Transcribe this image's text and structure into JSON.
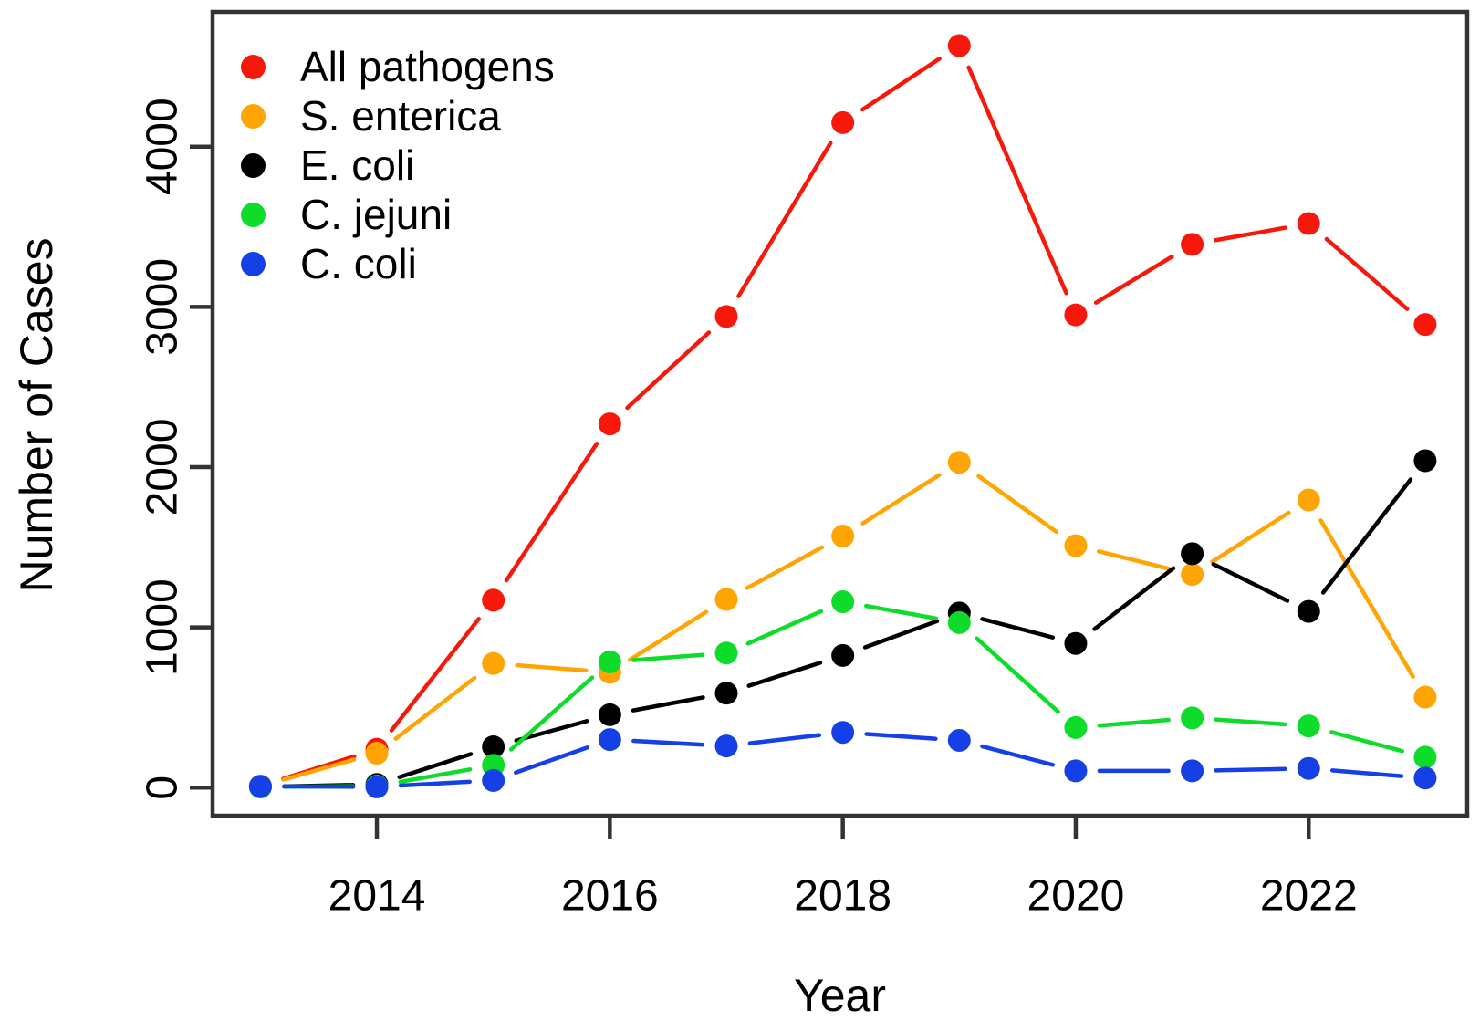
{
  "figure": {
    "background_color": "#ffffff",
    "frame_color": "#333333",
    "text_color": "#000000"
  },
  "chart_data": {
    "type": "line",
    "title": "",
    "xlabel": "Year",
    "ylabel": "Number of Cases",
    "marker": "filled-circle",
    "line_style": "segments-with-gaps-around-points",
    "grid": false,
    "legend_position": "top-left-inside",
    "x": [
      2013,
      2014,
      2015,
      2016,
      2017,
      2018,
      2019,
      2020,
      2021,
      2022,
      2023
    ],
    "x_ticks": [
      2014,
      2016,
      2018,
      2020,
      2022
    ],
    "x_tick_labels": [
      "2014",
      "2016",
      "2018",
      "2020",
      "2022"
    ],
    "y_ticks": [
      0,
      1000,
      2000,
      3000,
      4000
    ],
    "y_tick_labels": [
      "0",
      "1000",
      "2000",
      "3000",
      "4000"
    ],
    "xlim": [
      2012.6,
      2023.4
    ],
    "ylim": [
      -175,
      4840
    ],
    "series": [
      {
        "name": "All pathogens",
        "color": "#f6190b",
        "values": [
          10,
          240,
          1170,
          2270,
          2940,
          4150,
          4630,
          2950,
          3390,
          3520,
          2890
        ]
      },
      {
        "name": "S. enterica",
        "color": "#ffa503",
        "values": [
          10,
          215,
          775,
          720,
          1175,
          1570,
          2030,
          1510,
          1330,
          1795,
          565
        ]
      },
      {
        "name": "E. coli",
        "color": "#000000",
        "values": [
          5,
          20,
          255,
          455,
          590,
          825,
          1090,
          900,
          1460,
          1100,
          2040
        ]
      },
      {
        "name": "C. jejuni",
        "color": "#0ddc2a",
        "values": [
          5,
          10,
          140,
          785,
          840,
          1160,
          1030,
          375,
          435,
          385,
          190
        ]
      },
      {
        "name": "C. coli",
        "color": "#1540e6",
        "values": [
          8,
          5,
          45,
          300,
          260,
          345,
          295,
          105,
          105,
          120,
          60
        ]
      }
    ]
  }
}
